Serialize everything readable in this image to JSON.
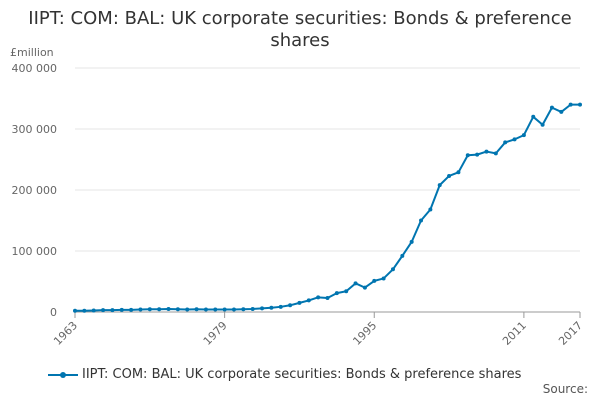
{
  "chart_data": {
    "type": "line",
    "title": "IIPT: COM: BAL: UK corporate securities: Bonds & preference shares",
    "ylabel": "£million",
    "ylim": [
      0,
      400000
    ],
    "yticks": [
      0,
      100000,
      200000,
      300000,
      400000
    ],
    "ytick_labels": [
      "0",
      "100 000",
      "200 000",
      "300 000",
      "400 000"
    ],
    "xlim": [
      1963,
      2017
    ],
    "xticks": [
      1963,
      1979,
      1995,
      2011,
      2017
    ],
    "xtick_labels": [
      "1963",
      "1979",
      "1995",
      "2011",
      "2017"
    ],
    "grid": true,
    "legend_position": "bottom",
    "color": "#0075b0",
    "series": [
      {
        "name": "IIPT: COM: BAL: UK corporate securities: Bonds & preference shares",
        "x": [
          1963,
          1964,
          1965,
          1966,
          1967,
          1968,
          1969,
          1970,
          1971,
          1972,
          1973,
          1974,
          1975,
          1976,
          1977,
          1978,
          1979,
          1980,
          1981,
          1982,
          1983,
          1984,
          1985,
          1986,
          1987,
          1988,
          1989,
          1990,
          1991,
          1992,
          1993,
          1994,
          1995,
          1996,
          1997,
          1998,
          1999,
          2000,
          2001,
          2002,
          2003,
          2004,
          2005,
          2006,
          2007,
          2008,
          2009,
          2010,
          2011,
          2012,
          2013,
          2014,
          2015,
          2016,
          2017
        ],
        "y": [
          2000,
          2000,
          2500,
          3000,
          3000,
          3500,
          3500,
          4000,
          4500,
          4500,
          5000,
          4500,
          4000,
          4500,
          4000,
          4000,
          4000,
          4000,
          4500,
          5000,
          6000,
          7000,
          8500,
          11000,
          15000,
          19000,
          24000,
          23000,
          31000,
          34000,
          47000,
          40000,
          51000,
          55000,
          70000,
          92000,
          115000,
          150000,
          168000,
          208000,
          223000,
          229000,
          257000,
          258000,
          263000,
          260000,
          278000,
          283000,
          290000,
          320000,
          307000,
          335000,
          328000,
          340000,
          340000
        ]
      }
    ]
  },
  "source_label": "Source:"
}
